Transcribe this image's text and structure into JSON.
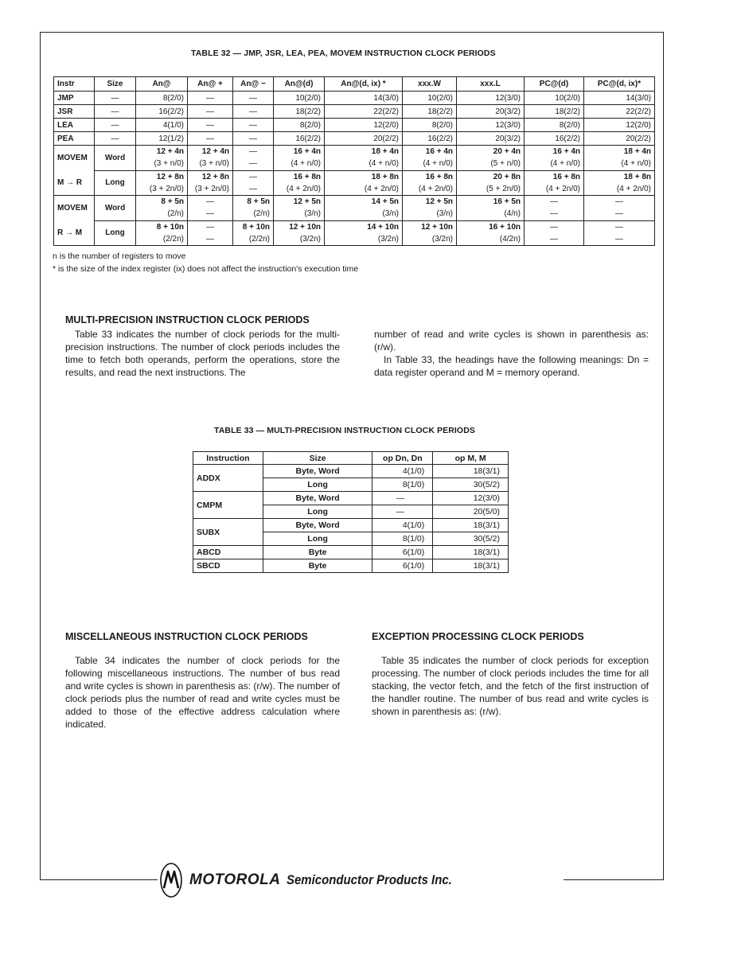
{
  "table32": {
    "caption": "TABLE 32 — JMP, JSR, LEA, PEA, MOVEM INSTRUCTION CLOCK PERIODS",
    "headers": [
      "Instr",
      "Size",
      "An@",
      "An@ +",
      "An@ −",
      "An@(d)",
      "An@(d, ix) *",
      "xxx.W",
      "xxx.L",
      "PC@(d)",
      "PC@(d, ix)*"
    ],
    "rows": [
      [
        "JMP",
        "—",
        "8(2/0)",
        "—",
        "—",
        "10(2/0)",
        "14(3/0)",
        "10(2/0)",
        "12(3/0)",
        "10(2/0)",
        "14(3/0)"
      ],
      [
        "JSR",
        "—",
        "16(2/2)",
        "—",
        "—",
        "18(2/2)",
        "22(2/2)",
        "18(2/2)",
        "20(3/2)",
        "18(2/2)",
        "22(2/2)"
      ],
      [
        "LEA",
        "—",
        "4(1/0)",
        "—",
        "—",
        "8(2/0)",
        "12(2/0)",
        "8(2/0)",
        "12(3/0)",
        "8(2/0)",
        "12(2/0)"
      ],
      [
        "PEA",
        "—",
        "12(1/2)",
        "—",
        "—",
        "16(2/2)",
        "20(2/2)",
        "16(2/2)",
        "20(3/2)",
        "16(2/2)",
        "20(2/2)"
      ]
    ],
    "groups": [
      {
        "label_top": "MOVEM",
        "label_bottom": "M → R",
        "rows": [
          {
            "size": "Word",
            "cells": [
              [
                "12 + 4n",
                "(3 + n/0)"
              ],
              [
                "12 + 4n",
                "(3 + n/0)"
              ],
              [
                "—",
                "—"
              ],
              [
                "16 + 4n",
                "(4 + n/0)"
              ],
              [
                "18 + 4n",
                "(4 + n/0)"
              ],
              [
                "16 + 4n",
                "(4 + n/0)"
              ],
              [
                "20 + 4n",
                "(5 + n/0)"
              ],
              [
                "16 + 4n",
                "(4 + n/0)"
              ],
              [
                "18 + 4n",
                "(4 + n/0)"
              ]
            ]
          },
          {
            "size": "Long",
            "cells": [
              [
                "12 + 8n",
                "(3 + 2n/0)"
              ],
              [
                "12 + 8n",
                "(3 + 2n/0)"
              ],
              [
                "—",
                "—"
              ],
              [
                "16 + 8n",
                "(4 + 2n/0)"
              ],
              [
                "18 + 8n",
                "(4 + 2n/0)"
              ],
              [
                "16 + 8n",
                "(4 + 2n/0)"
              ],
              [
                "20 + 8n",
                "(5 + 2n/0)"
              ],
              [
                "16 + 8n",
                "(4 + 2n/0)"
              ],
              [
                "18 + 8n",
                "(4 + 2n/0)"
              ]
            ]
          }
        ]
      },
      {
        "label_top": "MOVEM",
        "label_bottom": "R → M",
        "rows": [
          {
            "size": "Word",
            "cells": [
              [
                "8 + 5n",
                "(2/n)"
              ],
              [
                "—",
                "—"
              ],
              [
                "8 + 5n",
                "(2/n)"
              ],
              [
                "12 + 5n",
                "(3/n)"
              ],
              [
                "14 + 5n",
                "(3/n)"
              ],
              [
                "12 + 5n",
                "(3/n)"
              ],
              [
                "16 + 5n",
                "(4/n)"
              ],
              [
                "—",
                "—"
              ],
              [
                "—",
                "—"
              ]
            ]
          },
          {
            "size": "Long",
            "cells": [
              [
                "8 + 10n",
                "(2/2n)"
              ],
              [
                "—",
                "—"
              ],
              [
                "8 + 10n",
                "(2/2n)"
              ],
              [
                "12 + 10n",
                "(3/2n)"
              ],
              [
                "14 + 10n",
                "(3/2n)"
              ],
              [
                "12 + 10n",
                "(3/2n)"
              ],
              [
                "16 + 10n",
                "(4/2n)"
              ],
              [
                "—",
                "—"
              ],
              [
                "—",
                "—"
              ]
            ]
          }
        ]
      }
    ],
    "notes": [
      "n is the number of registers to move",
      "* is the size of the index register (ix) does not affect the instruction's execution time"
    ]
  },
  "multi_precision": {
    "heading": "MULTI-PRECISION INSTRUCTION CLOCK PERIODS",
    "para_left": "Table 33 indicates the number of clock periods for the multi-precision instructions. The number of clock periods includes the time to fetch both operands, perform the operations, store the results, and read the next instructions. The",
    "para_right_1": "number of read and write cycles is shown in parenthesis as: (r/w).",
    "para_right_2": "In Table 33, the headings have the following meanings: Dn = data register operand and M = memory operand."
  },
  "table33": {
    "caption": "TABLE 33 — MULTI-PRECISION INSTRUCTION CLOCK PERIODS",
    "headers": [
      "Instruction",
      "Size",
      "op Dn, Dn",
      "op M, M"
    ],
    "groups": [
      {
        "instr": "ADDX",
        "rows": [
          [
            "Byte, Word",
            "4(1/0)",
            "18(3/1)"
          ],
          [
            "Long",
            "8(1/0)",
            "30(5/2)"
          ]
        ]
      },
      {
        "instr": "CMPM",
        "rows": [
          [
            "Byte, Word",
            "—",
            "12(3/0)"
          ],
          [
            "Long",
            "—",
            "20(5/0)"
          ]
        ]
      },
      {
        "instr": "SUBX",
        "rows": [
          [
            "Byte, Word",
            "4(1/0)",
            "18(3/1)"
          ],
          [
            "Long",
            "8(1/0)",
            "30(5/2)"
          ]
        ]
      },
      {
        "instr": "ABCD",
        "rows": [
          [
            "Byte",
            "6(1/0)",
            "18(3/1)"
          ]
        ]
      },
      {
        "instr": "SBCD",
        "rows": [
          [
            "Byte",
            "6(1/0)",
            "18(3/1)"
          ]
        ]
      }
    ]
  },
  "misc": {
    "heading": "MISCELLANEOUS INSTRUCTION CLOCK PERIODS",
    "para": "Table 34 indicates the number of clock periods for the following miscellaneous instructions. The number of bus read and write cycles is shown in parenthesis as: (r/w). The number of clock periods plus the number of read and write cycles must be added to those of the effective address calculation where indicated."
  },
  "exception": {
    "heading": "EXCEPTION PROCESSING CLOCK PERIODS",
    "para": "Table 35 indicates the number of clock periods for exception processing. The number of clock periods includes the time for all stacking, the vector fetch, and the fetch of the first instruction of the handler routine. The number of bus read and write cycles is shown in parenthesis as: (r/w)."
  },
  "footer": {
    "logo_icon": "motorola-batwing-logo",
    "brand": "MOTOROLA",
    "tagline": "Semiconductor Products Inc."
  }
}
